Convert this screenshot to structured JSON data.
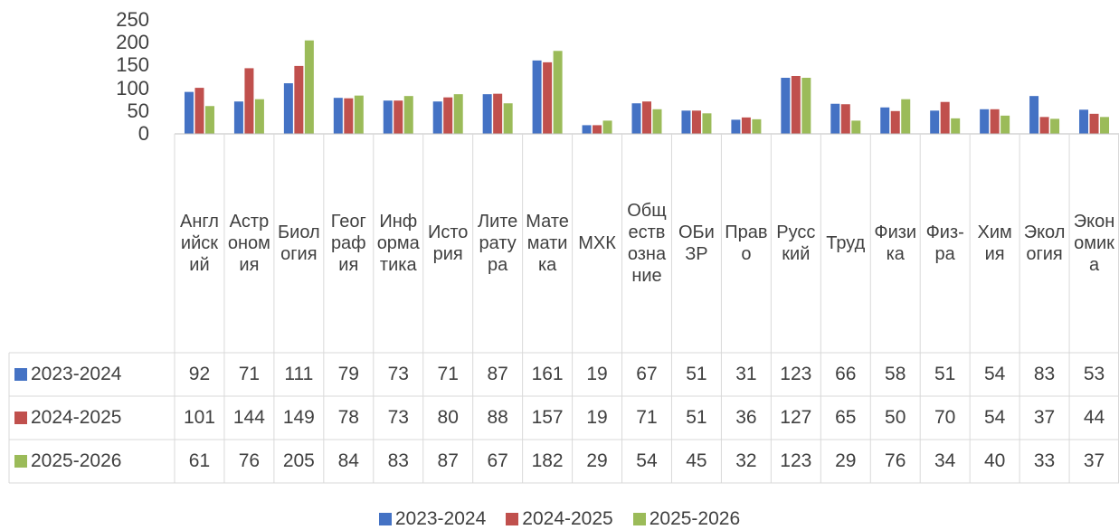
{
  "chart_data": {
    "type": "bar",
    "categories": [
      "Английский",
      "Астрономия",
      "Биология",
      "География",
      "Информатика",
      "История",
      "Литература",
      "Математика",
      "МХК",
      "Обществознание",
      "ОБиЗР",
      "Право",
      "Русский",
      "Труд",
      "Физика",
      "Физ-ра",
      "Химия",
      "Экология",
      "Экономика"
    ],
    "series": [
      {
        "name": "2023-2024",
        "color": "#4472c4",
        "values": [
          92,
          71,
          111,
          79,
          73,
          71,
          87,
          161,
          19,
          67,
          51,
          31,
          123,
          66,
          58,
          51,
          54,
          83,
          53
        ]
      },
      {
        "name": "2024-2025",
        "color": "#c0504d",
        "values": [
          101,
          144,
          149,
          78,
          73,
          80,
          88,
          157,
          19,
          71,
          51,
          36,
          127,
          65,
          50,
          70,
          54,
          37,
          44
        ]
      },
      {
        "name": "2025-2026",
        "color": "#9bbb59",
        "values": [
          61,
          76,
          205,
          84,
          83,
          87,
          67,
          182,
          29,
          54,
          45,
          32,
          123,
          29,
          76,
          34,
          40,
          33,
          37
        ]
      }
    ],
    "ylim": [
      0,
      250
    ],
    "yticks": [
      0,
      50,
      100,
      150,
      200,
      250
    ],
    "legend": "bottom",
    "data_table": true
  }
}
